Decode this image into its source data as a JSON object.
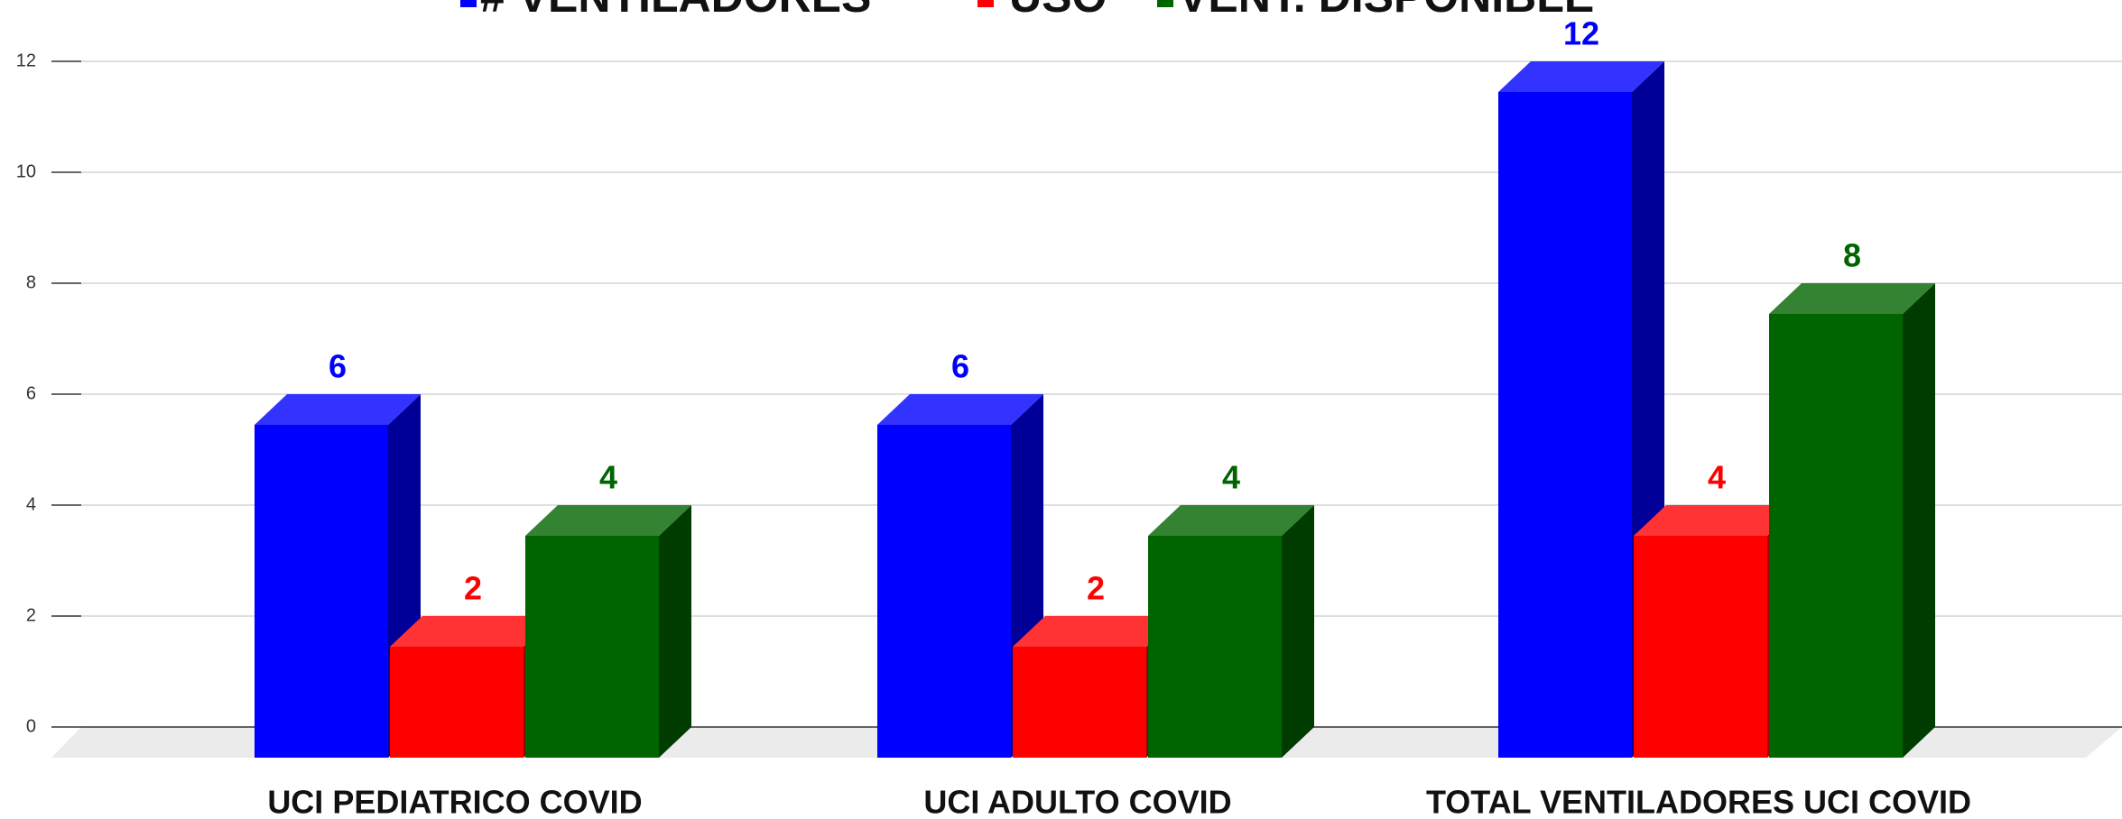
{
  "chart_data": {
    "type": "bar3d",
    "categories": [
      "UCI PEDIATRICO COVID",
      "UCI ADULTO COVID",
      "TOTAL VENTILADORES UCI COVID"
    ],
    "series": [
      {
        "name": "# VENTILADORES",
        "color": "#0000ff",
        "values": [
          6,
          6,
          12
        ]
      },
      {
        "name": "USO",
        "color": "#ff0000",
        "values": [
          2,
          2,
          4
        ]
      },
      {
        "name": "VENT. DISPONIBLE",
        "color": "#006400",
        "values": [
          4,
          4,
          8
        ]
      }
    ],
    "ylim": [
      0,
      12
    ],
    "yticks": [
      0,
      2,
      4,
      6,
      8,
      10,
      12
    ],
    "grid": true
  }
}
